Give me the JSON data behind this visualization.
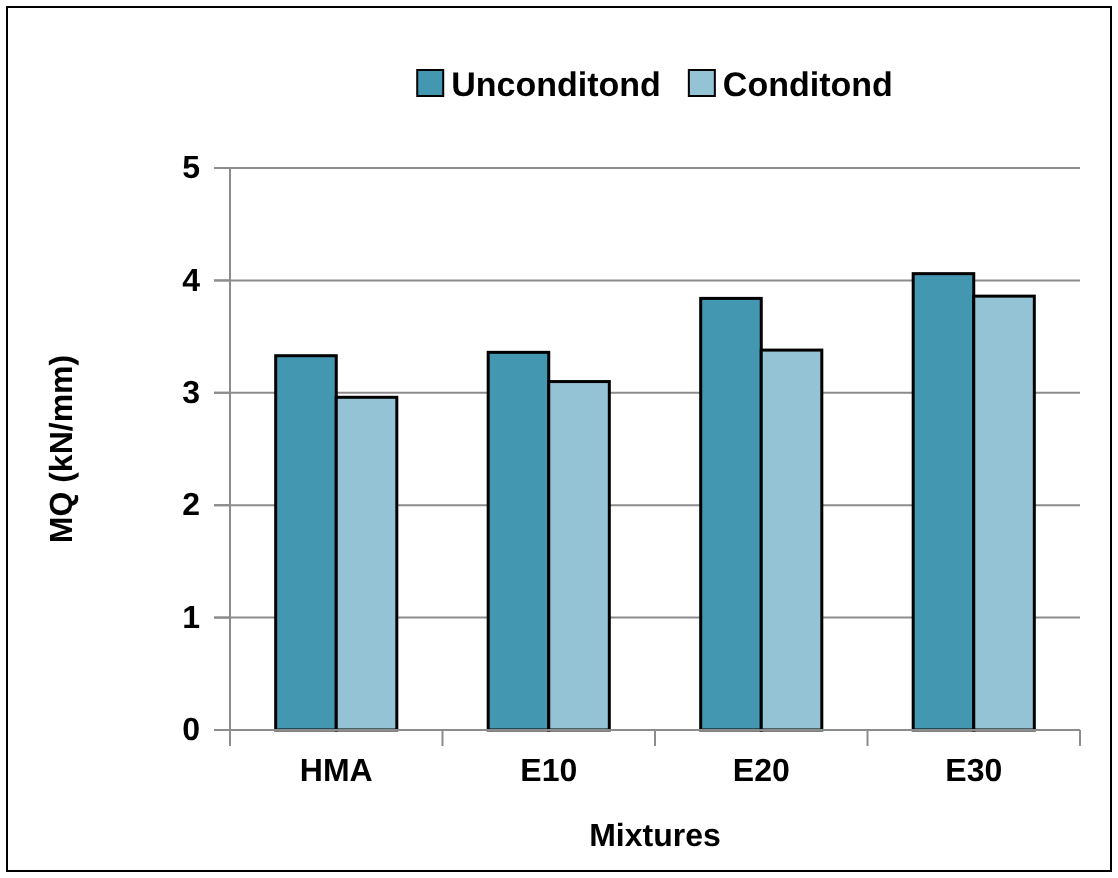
{
  "chart_data": {
    "type": "bar",
    "xlabel": "Mixtures",
    "ylabel": "MQ (kN/mm)",
    "categories": [
      "HMA",
      "E10",
      "E20",
      "E30"
    ],
    "series": [
      {
        "name": "Unconditond",
        "color": "#4397b0",
        "values": [
          3.33,
          3.36,
          3.84,
          4.06
        ]
      },
      {
        "name": "Conditond",
        "color": "#93c3d4",
        "values": [
          2.96,
          3.1,
          3.38,
          3.86
        ]
      }
    ],
    "ylim": [
      0,
      5
    ],
    "yticks": [
      0,
      1,
      2,
      3,
      4,
      5
    ],
    "grid": "y",
    "legend": "top"
  }
}
